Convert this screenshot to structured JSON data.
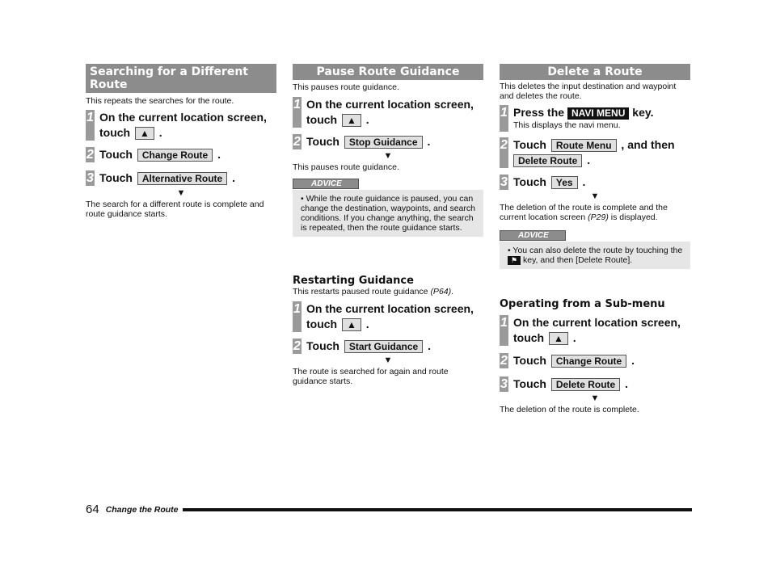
{
  "left": {
    "title": "Searching for a Different Route",
    "intro": "This repeats the searches for the route.",
    "steps": [
      {
        "num": "1",
        "text": "On the current location screen, touch",
        "key": "▲"
      },
      {
        "num": "2",
        "text": "Touch",
        "key": "Change Route"
      },
      {
        "num": "3",
        "text": "Touch",
        "key": "Alternative Route"
      }
    ],
    "arrow": "▼",
    "result": "The search for a different route is complete and route guidance starts."
  },
  "middle": {
    "title": "Pause Route Guidance",
    "intro": "This pauses route guidance.",
    "steps": [
      {
        "num": "1",
        "text": "On the current location screen, touch",
        "key": "▲"
      },
      {
        "num": "2",
        "text": "Touch",
        "key": "Stop Guidance"
      }
    ],
    "arrow": "▼",
    "result": "This pauses route guidance.",
    "advice_label": "ADVICE",
    "advice": "• While the route guidance is paused, you can change the destination, waypoints, and search conditions. If you change anything, the search is repeated, then the route guidance starts.",
    "sub_title": "Restarting Guidance",
    "sub_intro": "This restarts paused route guidance",
    "sub_ref": "(P64)",
    "sub_steps": [
      {
        "num": "1",
        "text": "On the current location screen, touch",
        "key": "▲"
      },
      {
        "num": "2",
        "text": "Touch",
        "key": "Start Guidance"
      }
    ],
    "sub_result": "The route is searched for again and route guidance starts."
  },
  "right": {
    "title": "Delete a Route",
    "intro": "This deletes the input destination and waypoint and deletes the route.",
    "step1": {
      "num": "1",
      "pre": "Press the",
      "key": "NAVI MENU",
      "post": "key.",
      "note": "This displays the navi menu."
    },
    "step2": {
      "num": "2",
      "pre": "Touch",
      "key": "Route Menu",
      "mid": ", and then",
      "key2": "Delete Route"
    },
    "step3": {
      "num": "3",
      "pre": "Touch",
      "key": "Yes"
    },
    "arrow": "▼",
    "result": "The deletion of the route is complete and the current location screen",
    "result_ref": "(P29)",
    "result_end": "is displayed.",
    "advice_label": "ADVICE",
    "advice_pre": "• You can also delete the route by touching the",
    "advice_post": "key, and then [Delete Route].",
    "sub_title": "Operating from a Sub-menu",
    "sub_steps": [
      {
        "num": "1",
        "text": "On the current location screen, touch",
        "key": "▲"
      },
      {
        "num": "2",
        "text": "Touch",
        "key": "Change Route"
      },
      {
        "num": "3",
        "text": "Touch",
        "key": "Delete Route"
      }
    ],
    "sub_result": "The deletion of the route is complete."
  },
  "footer": {
    "page": "64",
    "section": "Change the Route"
  },
  "period": "."
}
